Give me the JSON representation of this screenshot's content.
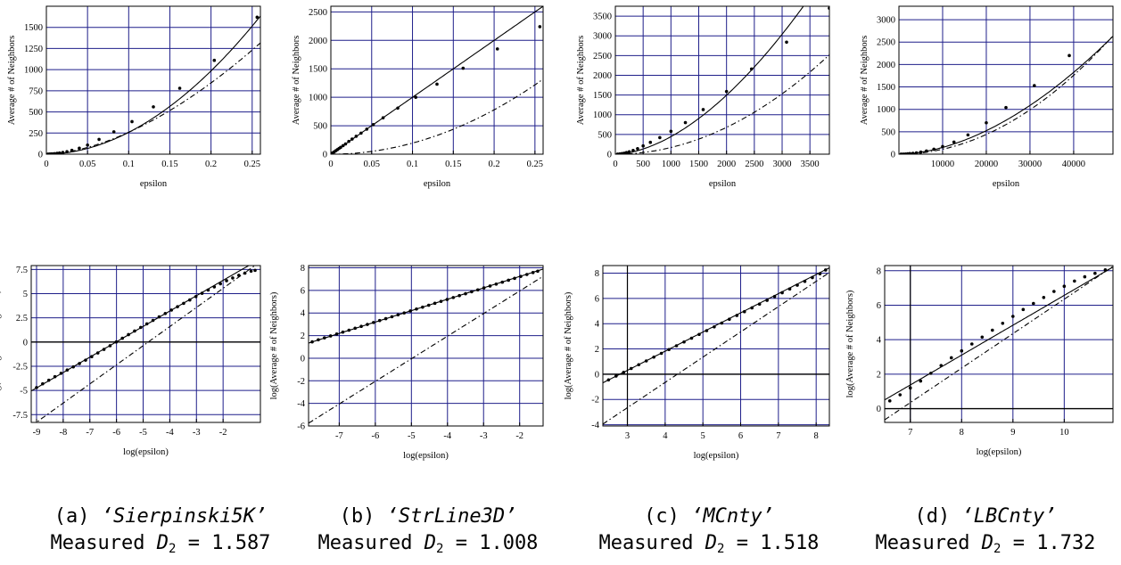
{
  "common": {
    "top_xlabel": "epsilon",
    "top_ylabel": "Average # of Neighbors",
    "bottom_xlabel": "log(epsilon)",
    "bottom_ylabel": "log(Average # of Neighbors)",
    "measured_prefix": "Measured",
    "measured_symbol": "D",
    "measured_subscript": "2",
    "grid_color": "#1f1f8a"
  },
  "captions": [
    {
      "letter": "(a)",
      "title": "‘Sierpinski5K’",
      "value": "1.587"
    },
    {
      "letter": "(b)",
      "title": "‘StrLine3D’",
      "value": "1.008"
    },
    {
      "letter": "(c)",
      "title": "‘MCnty’",
      "value": "1.518"
    },
    {
      "letter": "(d)",
      "title": "‘LBCnty’",
      "value": "1.732"
    }
  ],
  "chart_data": [
    {
      "type": "scatter",
      "panel": "a-top",
      "xlabel": "epsilon",
      "ylabel": "Average # of Neighbors",
      "xlim": [
        0,
        0.26
      ],
      "ylim": [
        0,
        1750
      ],
      "xticks": [
        0,
        0.05,
        0.1,
        0.15,
        0.2,
        0.25
      ],
      "xtick_labels": [
        "0",
        "0.05",
        "0.1",
        "0.15",
        "0.2",
        "0.25"
      ],
      "yticks": [
        0,
        250,
        500,
        750,
        1000,
        1250,
        1500
      ],
      "grid": true,
      "series": [
        {
          "style": "points",
          "x": [
            0.002,
            0.004,
            0.006,
            0.008,
            0.01,
            0.013,
            0.016,
            0.02,
            0.025,
            0.031,
            0.04,
            0.05,
            0.064,
            0.082,
            0.104,
            0.13,
            0.162,
            0.204,
            0.256
          ],
          "y": [
            1,
            2,
            3,
            4,
            6,
            10,
            14,
            20,
            30,
            45,
            70,
            108,
            175,
            265,
            385,
            560,
            780,
            1110,
            1620
          ]
        },
        {
          "style": "solid",
          "fn": "power",
          "c": 22000,
          "p": 1.93
        },
        {
          "style": "dashdot",
          "fn": "power",
          "c": 13000,
          "p": 1.7
        }
      ]
    },
    {
      "type": "scatter",
      "panel": "b-top",
      "xlabel": "epsilon",
      "ylabel": "Average # of Neighbors",
      "xlim": [
        0,
        0.26
      ],
      "ylim": [
        0,
        2600
      ],
      "xticks": [
        0,
        0.05,
        0.1,
        0.15,
        0.2,
        0.25
      ],
      "xtick_labels": [
        "0",
        "0.05",
        "0.1",
        "0.15",
        "0.2",
        "0.25"
      ],
      "yticks": [
        0,
        500,
        1000,
        1500,
        2000,
        2500
      ],
      "grid": true,
      "series": [
        {
          "style": "points",
          "x": [
            0.002,
            0.004,
            0.006,
            0.008,
            0.01,
            0.012,
            0.015,
            0.018,
            0.022,
            0.026,
            0.031,
            0.037,
            0.044,
            0.052,
            0.064,
            0.082,
            0.104,
            0.13,
            0.162,
            0.204,
            0.256
          ],
          "y": [
            20,
            40,
            60,
            80,
            100,
            120,
            150,
            180,
            225,
            265,
            315,
            370,
            440,
            520,
            640,
            810,
            1000,
            1230,
            1510,
            1850,
            2240
          ]
        },
        {
          "style": "solid",
          "fn": "power",
          "c": 10000,
          "p": 1.0
        },
        {
          "style": "dashdot",
          "fn": "power",
          "c": 19500,
          "p": 2.0
        }
      ]
    },
    {
      "type": "scatter",
      "panel": "c-top",
      "xlabel": "epsilon",
      "ylabel": "Average # of Neighbors",
      "xlim": [
        0,
        3850
      ],
      "ylim": [
        0,
        3750
      ],
      "xticks": [
        0,
        500,
        1000,
        1500,
        2000,
        2500,
        3000,
        3500
      ],
      "xtick_labels": [
        "0",
        "500",
        "1000",
        "1500",
        "2000",
        "2500",
        "3000",
        "3500"
      ],
      "yticks": [
        0,
        500,
        1000,
        1500,
        2000,
        2500,
        3000,
        3500
      ],
      "grid": true,
      "series": [
        {
          "style": "points",
          "x": [
            40,
            80,
            120,
            160,
            200,
            250,
            320,
            400,
            500,
            630,
            800,
            1000,
            1260,
            1580,
            2000,
            2450,
            3080,
            3850
          ],
          "y": [
            3,
            8,
            15,
            25,
            40,
            60,
            95,
            140,
            210,
            300,
            420,
            580,
            800,
            1130,
            1590,
            2160,
            2840,
            3700
          ]
        },
        {
          "style": "solid",
          "fn": "power",
          "c": 0.0025,
          "p": 1.75
        },
        {
          "style": "dashdot",
          "fn": "power",
          "c": 0.00017,
          "p": 2.0
        }
      ]
    },
    {
      "type": "scatter",
      "panel": "d-top",
      "xlabel": "epsilon",
      "ylabel": "Average # of Neighbors",
      "xlim": [
        0,
        49000
      ],
      "ylim": [
        0,
        3300
      ],
      "xticks": [
        10000,
        20000,
        30000,
        40000
      ],
      "xtick_labels": [
        "10000",
        "20000",
        "30000",
        "40000"
      ],
      "yticks": [
        0,
        500,
        1000,
        1500,
        2000,
        2500,
        3000
      ],
      "grid": true,
      "series": [
        {
          "style": "points",
          "x": [
            500,
            1000,
            1500,
            2000,
            2500,
            3200,
            4000,
            5000,
            6300,
            8000,
            10000,
            12600,
            15800,
            20000,
            24500,
            31000,
            39000
          ],
          "y": [
            1,
            2,
            4,
            8,
            13,
            20,
            30,
            45,
            70,
            110,
            170,
            270,
            430,
            700,
            1040,
            1530,
            2200
          ]
        },
        {
          "style": "solid",
          "fn": "power",
          "c": 9.5e-06,
          "p": 1.8
        },
        {
          "style": "dashdot",
          "fn": "power",
          "c": 1.1e-06,
          "p": 2.0
        }
      ]
    },
    {
      "type": "scatter",
      "panel": "a-bottom",
      "xlabel": "log(epsilon)",
      "ylabel": "log(Average # of Neighbors)",
      "xlim": [
        -9.2,
        -0.6
      ],
      "ylim": [
        -8.3,
        7.9
      ],
      "xticks": [
        -9,
        -8,
        -7,
        -6,
        -5,
        -4,
        -3,
        -2
      ],
      "yticks": [
        -7.5,
        -5,
        -2.5,
        0,
        2.5,
        5,
        7.5
      ],
      "zero_line": "y",
      "grid": true,
      "series": [
        {
          "style": "points",
          "x": [
            -9.0,
            -8.77,
            -8.54,
            -8.31,
            -8.08,
            -7.85,
            -7.62,
            -7.39,
            -7.16,
            -6.93,
            -6.7,
            -6.47,
            -6.24,
            -6.01,
            -5.78,
            -5.55,
            -5.32,
            -5.09,
            -4.86,
            -4.63,
            -4.4,
            -4.17,
            -3.94,
            -3.71,
            -3.48,
            -3.25,
            -3.02,
            -2.79,
            -2.56,
            -2.33,
            -2.1,
            -1.87,
            -1.64,
            -1.41,
            -1.18,
            -0.95,
            -0.8
          ],
          "y": [
            -4.7,
            -4.31,
            -3.94,
            -3.58,
            -3.23,
            -2.89,
            -2.56,
            -2.22,
            -1.87,
            -1.51,
            -1.13,
            -0.76,
            -0.38,
            0.01,
            0.39,
            0.77,
            1.14,
            1.51,
            1.88,
            2.24,
            2.6,
            2.95,
            3.3,
            3.65,
            4.0,
            4.35,
            4.7,
            5.04,
            5.37,
            5.7,
            6.02,
            6.34,
            6.62,
            6.89,
            7.12,
            7.32,
            7.4
          ]
        },
        {
          "style": "solid",
          "fn": "linear",
          "slope": 1.587,
          "intercept": 9.55
        },
        {
          "style": "dashdot",
          "fn": "linear",
          "slope": 1.975,
          "intercept": 9.5
        }
      ]
    },
    {
      "type": "scatter",
      "panel": "b-bottom",
      "xlabel": "log(epsilon)",
      "ylabel": "log(Average # of Neighbors)",
      "xlim": [
        -7.85,
        -1.35
      ],
      "ylim": [
        -6.0,
        8.2
      ],
      "xticks": [
        -7,
        -6,
        -5,
        -4,
        -3,
        -2
      ],
      "yticks": [
        -6,
        -4,
        -2,
        0,
        2,
        4,
        6,
        8
      ],
      "grid": true,
      "series": [
        {
          "style": "points",
          "x": [
            -7.75,
            -7.58,
            -7.41,
            -7.24,
            -7.07,
            -6.9,
            -6.73,
            -6.56,
            -6.39,
            -6.22,
            -6.05,
            -5.88,
            -5.71,
            -5.54,
            -5.37,
            -5.2,
            -5.03,
            -4.86,
            -4.69,
            -4.52,
            -4.35,
            -4.18,
            -4.01,
            -3.84,
            -3.67,
            -3.5,
            -3.33,
            -3.16,
            -2.99,
            -2.82,
            -2.65,
            -2.48,
            -2.31,
            -2.14,
            -1.97,
            -1.8,
            -1.63,
            -1.5
          ],
          "y": [
            1.45,
            1.63,
            1.8,
            1.97,
            2.14,
            2.31,
            2.48,
            2.65,
            2.82,
            2.99,
            3.16,
            3.33,
            3.5,
            3.67,
            3.84,
            4.01,
            4.18,
            4.35,
            4.52,
            4.69,
            4.86,
            5.03,
            5.2,
            5.37,
            5.54,
            5.71,
            5.88,
            6.05,
            6.22,
            6.39,
            6.56,
            6.73,
            6.9,
            7.07,
            7.24,
            7.41,
            7.58,
            7.7
          ]
        },
        {
          "style": "solid",
          "fn": "linear",
          "slope": 1.008,
          "intercept": 9.25
        },
        {
          "style": "dashdot",
          "fn": "linear",
          "slope": 2.0,
          "intercept": 9.95
        }
      ]
    },
    {
      "type": "scatter",
      "panel": "c-bottom",
      "xlabel": "log(epsilon)",
      "ylabel": "log(Average # of Neighbors)",
      "xlim": [
        2.35,
        8.35
      ],
      "ylim": [
        -4.1,
        8.6
      ],
      "xticks": [
        3,
        4,
        5,
        6,
        7,
        8
      ],
      "yticks": [
        -4,
        -2,
        0,
        2,
        4,
        6,
        8
      ],
      "zero_line": "both",
      "grid": true,
      "series": [
        {
          "style": "points",
          "x": [
            2.5,
            2.7,
            2.9,
            3.1,
            3.3,
            3.5,
            3.7,
            3.9,
            4.1,
            4.3,
            4.5,
            4.7,
            4.9,
            5.1,
            5.3,
            5.5,
            5.7,
            5.9,
            6.1,
            6.3,
            6.5,
            6.7,
            6.9,
            7.1,
            7.3,
            7.5,
            7.7,
            7.9,
            8.1,
            8.25
          ],
          "y": [
            -0.45,
            -0.15,
            0.15,
            0.45,
            0.75,
            1.05,
            1.35,
            1.65,
            1.95,
            2.25,
            2.55,
            2.85,
            3.15,
            3.45,
            3.75,
            4.05,
            4.35,
            4.65,
            4.95,
            5.25,
            5.55,
            5.85,
            6.15,
            6.45,
            6.75,
            7.05,
            7.35,
            7.65,
            7.95,
            8.25
          ]
        },
        {
          "style": "solid",
          "fn": "linear",
          "slope": 1.518,
          "intercept": -4.25
        },
        {
          "style": "dashdot",
          "fn": "linear",
          "slope": 2.0,
          "intercept": -8.65
        }
      ]
    },
    {
      "type": "scatter",
      "panel": "d-bottom",
      "xlabel": "log(epsilon)",
      "ylabel": "log(Average # of Neighbors)",
      "xlim": [
        6.5,
        10.95
      ],
      "ylim": [
        -0.8,
        8.3
      ],
      "xticks": [
        7,
        8,
        9,
        10
      ],
      "yticks": [
        0,
        2,
        4,
        6,
        8
      ],
      "zero_line": "both",
      "grid": true,
      "series": [
        {
          "style": "points",
          "x": [
            6.6,
            6.8,
            7.0,
            7.2,
            7.4,
            7.6,
            7.8,
            8.0,
            8.2,
            8.4,
            8.6,
            8.8,
            9.0,
            9.2,
            9.4,
            9.6,
            9.8,
            10.0,
            10.2,
            10.4,
            10.6,
            10.8
          ],
          "y": [
            0.45,
            0.8,
            1.2,
            1.6,
            2.05,
            2.5,
            2.95,
            3.35,
            3.75,
            4.15,
            4.55,
            4.95,
            5.35,
            5.75,
            6.1,
            6.45,
            6.8,
            7.1,
            7.4,
            7.65,
            7.85,
            8.05
          ]
        },
        {
          "style": "solid",
          "fn": "linear",
          "slope": 1.732,
          "intercept": -10.75
        },
        {
          "style": "dashdot",
          "fn": "linear",
          "slope": 2.0,
          "intercept": -13.65
        }
      ]
    }
  ]
}
